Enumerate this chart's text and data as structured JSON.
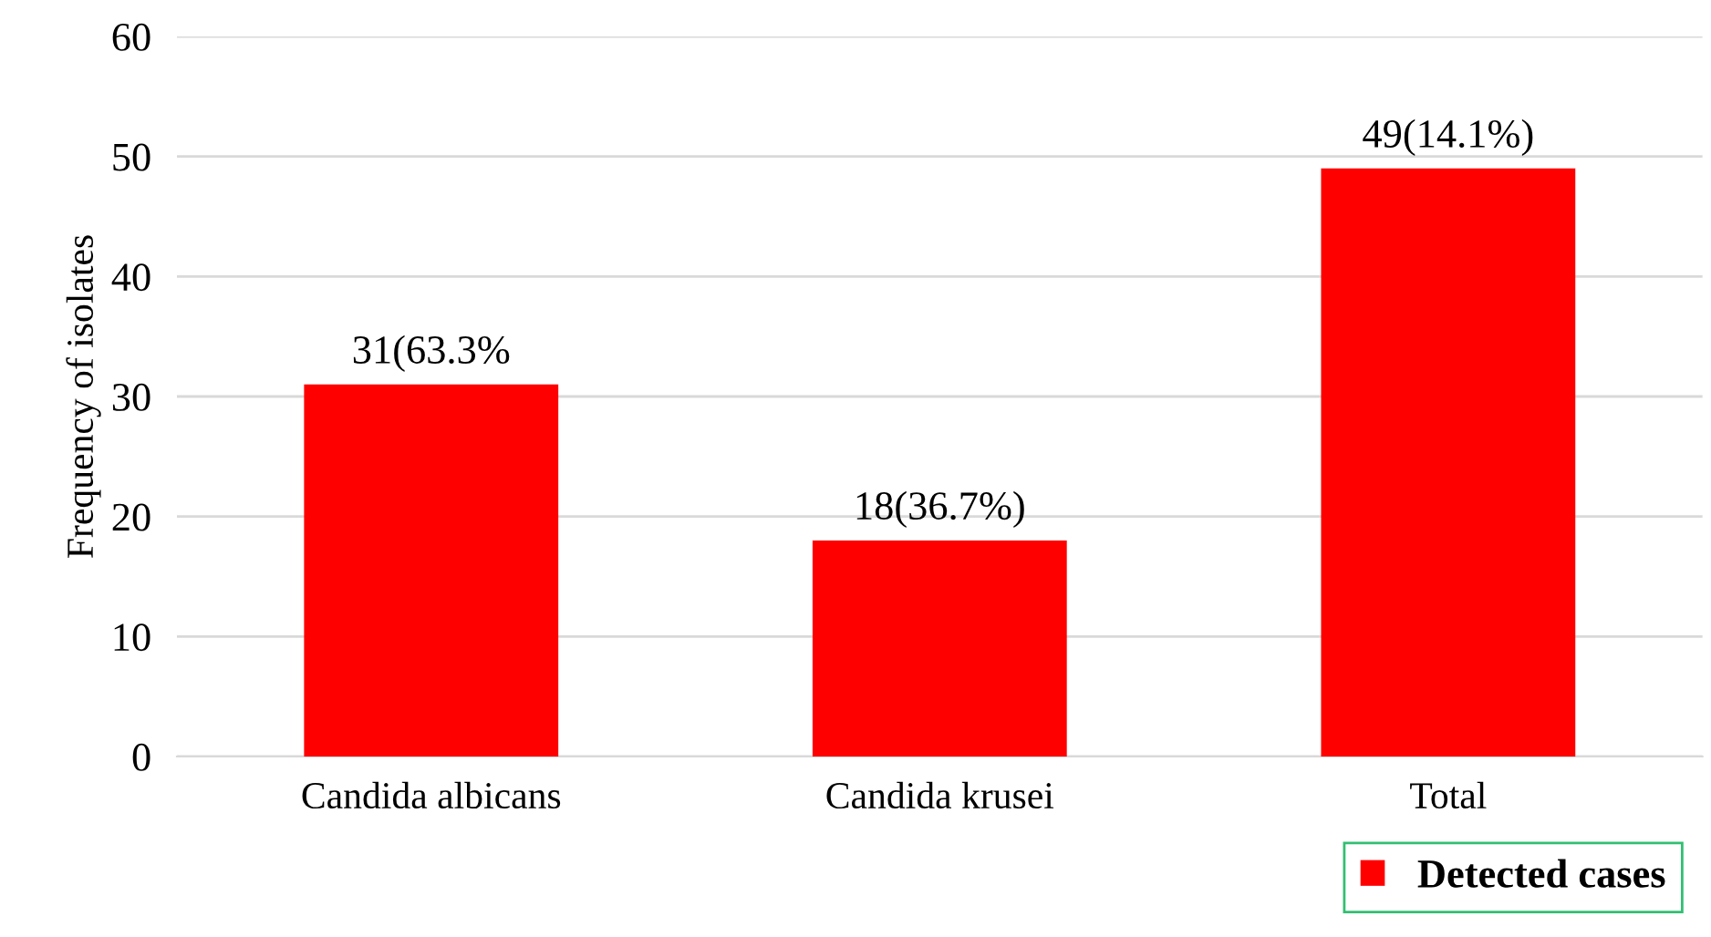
{
  "chart_data": {
    "type": "bar",
    "ylabel": "Frequency of isolates",
    "categories": [
      "Candida albicans",
      "Candida krusei",
      "Total"
    ],
    "series": [
      {
        "name": "Detected cases",
        "color": "#ff0000",
        "values": [
          31,
          18,
          49
        ],
        "value_labels": [
          "31(63.3%",
          "18(36.7%)",
          "49(14.1%)"
        ]
      }
    ],
    "ylim": [
      0,
      60
    ],
    "yticks": [
      0,
      10,
      20,
      30,
      40,
      50,
      60
    ],
    "grid": "y",
    "legend": "bottom right"
  }
}
